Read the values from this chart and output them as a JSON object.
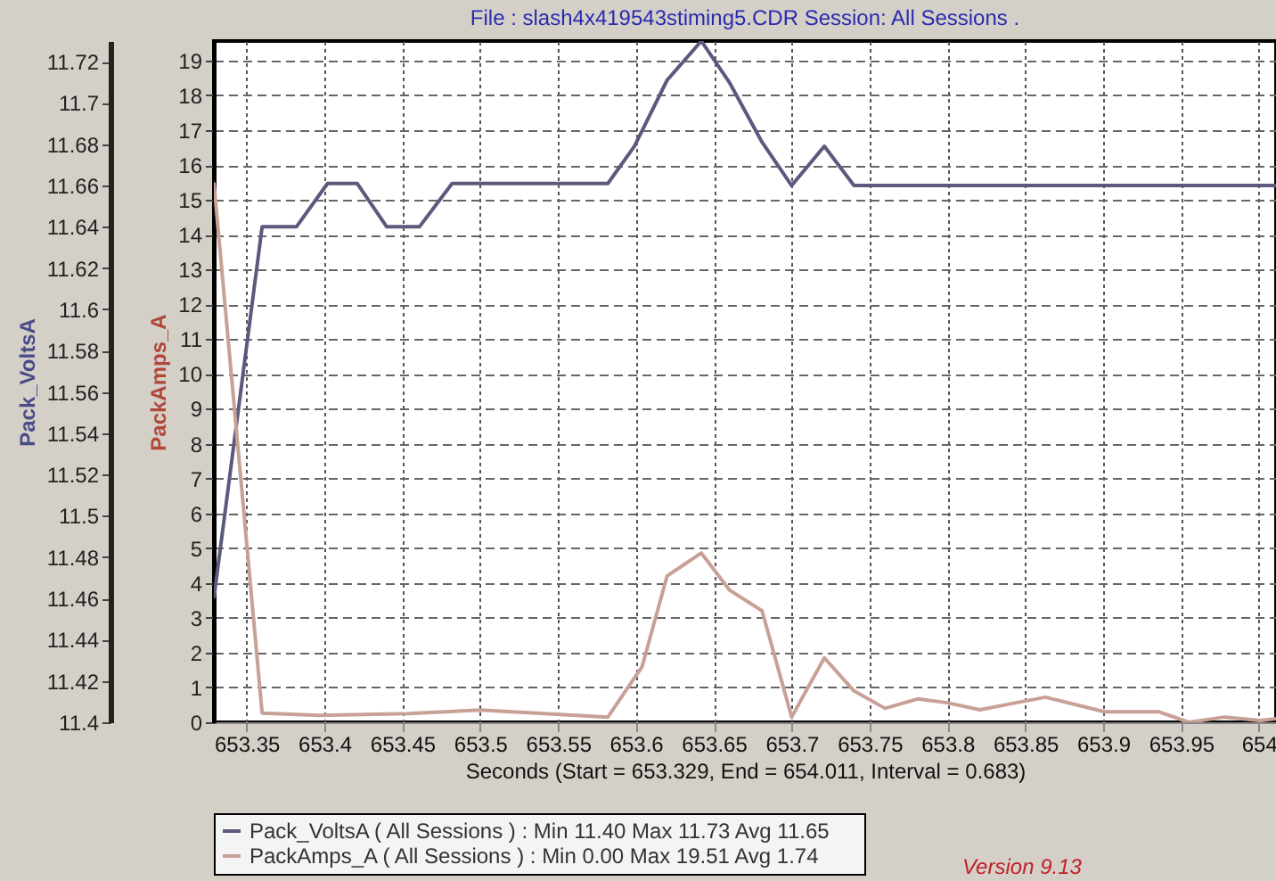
{
  "chart_data": {
    "type": "line",
    "title": "File : slash4x419543stiming5.CDR   Session: All Sessions .",
    "xlabel": "Seconds (Start = 653.329,  End = 654.011,  Interval =  0.683)",
    "ylabel": "Pack_VoltsA",
    "y2label": "PackAmps_A",
    "xlim": [
      653.329,
      654.011
    ],
    "xticks": [
      653.35,
      653.4,
      653.45,
      653.5,
      653.55,
      653.6,
      653.65,
      653.7,
      653.75,
      653.8,
      653.85,
      653.9,
      653.95,
      654
    ],
    "ylim": [
      11.4,
      11.73
    ],
    "yticks": [
      11.4,
      11.42,
      11.44,
      11.46,
      11.48,
      11.5,
      11.52,
      11.54,
      11.56,
      11.58,
      11.6,
      11.62,
      11.64,
      11.66,
      11.68,
      11.7,
      11.72
    ],
    "y2lim": [
      0,
      19.56
    ],
    "y2ticks": [
      0,
      1,
      2,
      3,
      4,
      5,
      6,
      7,
      8,
      9,
      10,
      11,
      12,
      13,
      14,
      15,
      16,
      17,
      18,
      19
    ],
    "grid": true,
    "legend": "bottom",
    "annotations": [
      "Version 9.13"
    ],
    "series": [
      {
        "name": "Pack_VoltsA ( All Sessions ) : Min 11.40   Max 11.73   Avg 11.65",
        "color": "#5c5a7c",
        "x": [
          653.329,
          653.36,
          653.382,
          653.402,
          653.421,
          653.44,
          653.461,
          653.482,
          653.582,
          653.599,
          653.62,
          653.642,
          653.66,
          653.681,
          653.7,
          653.721,
          653.74,
          654.011
        ],
        "values": [
          11.46,
          11.64,
          11.64,
          11.661,
          11.661,
          11.64,
          11.64,
          11.661,
          11.661,
          11.679,
          11.711,
          11.73,
          11.71,
          11.681,
          11.66,
          11.679,
          11.66,
          11.66
        ]
      },
      {
        "name": "PackAmps_A ( All Sessions ) : Min 0.00   Max 19.51   Avg 1.74",
        "color": "#c8a096",
        "axis": "y2",
        "x": [
          653.329,
          653.36,
          653.397,
          653.454,
          653.5,
          653.582,
          653.604,
          653.62,
          653.642,
          653.66,
          653.681,
          653.7,
          653.721,
          653.74,
          653.76,
          653.781,
          653.8,
          653.821,
          653.844,
          653.863,
          653.883,
          653.901,
          653.936,
          653.955,
          653.978,
          654.001,
          654.011
        ],
        "values": [
          15.5,
          0.26,
          0.2,
          0.25,
          0.35,
          0.15,
          1.6,
          4.2,
          4.86,
          3.8,
          3.2,
          0.15,
          1.85,
          0.9,
          0.4,
          0.67,
          0.56,
          0.36,
          0.56,
          0.72,
          0.5,
          0.3,
          0.3,
          0,
          0.15,
          0.05,
          0.1
        ]
      }
    ]
  }
}
